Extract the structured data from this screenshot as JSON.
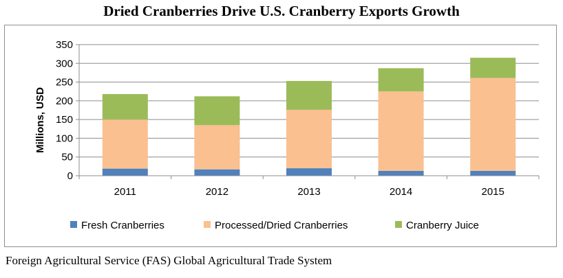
{
  "title": "Dried Cranberries Drive U.S. Cranberry Exports Growth",
  "source": "Foreign Agricultural Service (FAS) Global Agricultural Trade System",
  "chart_data": {
    "type": "bar",
    "stacked": true,
    "title": "Dried Cranberries Drive U.S. Cranberry Exports Growth",
    "xlabel": "",
    "ylabel": "Millions, USD",
    "ylim": [
      0,
      350
    ],
    "yticks": [
      0,
      50,
      100,
      150,
      200,
      250,
      300,
      350
    ],
    "categories": [
      "2011",
      "2012",
      "2013",
      "2014",
      "2015"
    ],
    "series": [
      {
        "name": "Fresh Cranberries",
        "color": "#4f81bd",
        "values": [
          19,
          17,
          20,
          13,
          13
        ]
      },
      {
        "name": "Processed/Dried Cranberries",
        "color": "#fac090",
        "values": [
          131,
          118,
          156,
          212,
          248
        ]
      },
      {
        "name": "Cranberry Juice",
        "color": "#9bbb59",
        "values": [
          68,
          77,
          77,
          62,
          54
        ]
      }
    ],
    "grid": "horizontal",
    "legend_position": "bottom"
  }
}
